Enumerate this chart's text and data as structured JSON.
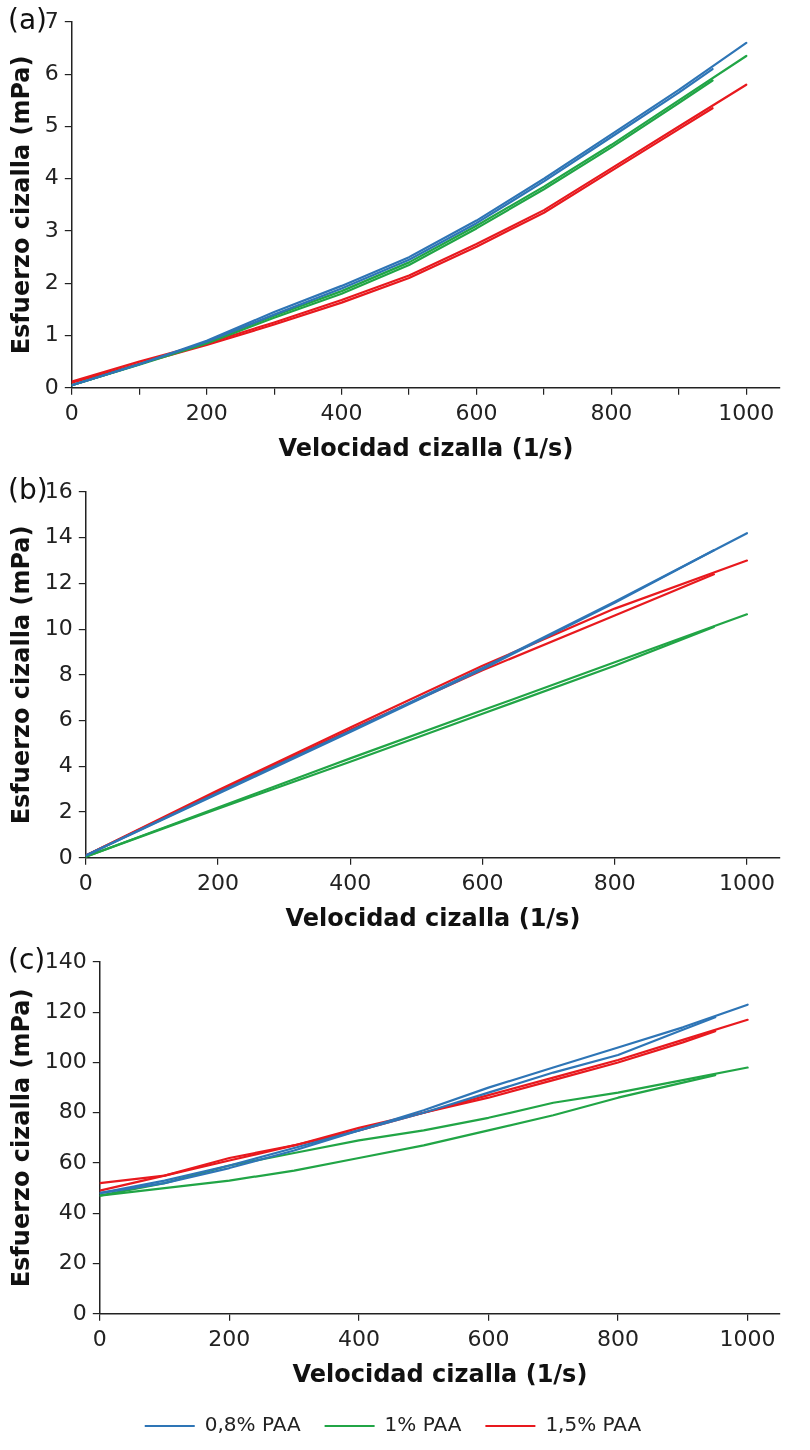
{
  "chart_data": [
    {
      "type": "line",
      "title": "(a)",
      "xlabel": "Velocidad cizalla (1/s)",
      "ylabel": "Esfuerzo cizalla (mPa)",
      "xlim": [
        0,
        1050
      ],
      "xticks": [
        0,
        {
          "value": 100,
          "label": null
        },
        200,
        {
          "value": 300,
          "label": null
        },
        400,
        {
          "value": 500,
          "label": null
        },
        600,
        {
          "value": 700,
          "label": null
        },
        800,
        {
          "value": 900,
          "label": null
        },
        1000
      ],
      "ylim": [
        0,
        7
      ],
      "yticks": [
        0,
        1,
        2,
        3,
        4,
        5,
        6,
        7
      ],
      "grid": false,
      "legend": false,
      "marker": "none",
      "line_style": "solid",
      "series": [
        {
          "color": "#2e75b6",
          "x": [
            0,
            100,
            200,
            300,
            400,
            500,
            600,
            700,
            800,
            900,
            1000
          ],
          "values": [
            0.05,
            0.45,
            0.9,
            1.45,
            1.95,
            2.5,
            3.2,
            4.0,
            4.85,
            5.7,
            6.6
          ]
        },
        {
          "color": "#2e75b6",
          "x": [
            950,
            900,
            800,
            700,
            600,
            500,
            400,
            300,
            200,
            100,
            0
          ],
          "values": [
            6.1,
            5.65,
            4.8,
            3.95,
            3.15,
            2.45,
            1.9,
            1.4,
            0.88,
            0.45,
            0.05
          ]
        },
        {
          "color": "#21a546",
          "x": [
            0,
            100,
            200,
            300,
            400,
            500,
            600,
            700,
            800,
            900,
            1000
          ],
          "values": [
            0.05,
            0.45,
            0.88,
            1.38,
            1.85,
            2.4,
            3.1,
            3.85,
            4.65,
            5.5,
            6.35
          ]
        },
        {
          "color": "#21a546",
          "x": [
            950,
            900,
            800,
            700,
            600,
            500,
            400,
            300,
            200,
            100,
            0
          ],
          "values": [
            5.88,
            5.45,
            4.6,
            3.8,
            3.05,
            2.35,
            1.8,
            1.34,
            0.85,
            0.44,
            0.05
          ]
        },
        {
          "color": "#e8191e",
          "x": [
            0,
            100,
            200,
            300,
            400,
            500,
            600,
            700,
            800,
            900,
            1000
          ],
          "values": [
            0.12,
            0.5,
            0.85,
            1.25,
            1.68,
            2.15,
            2.75,
            3.4,
            4.2,
            5.0,
            5.8
          ]
        },
        {
          "color": "#e8191e",
          "x": [
            950,
            900,
            800,
            700,
            600,
            500,
            400,
            300,
            200,
            100,
            0
          ],
          "values": [
            5.35,
            4.95,
            4.15,
            3.35,
            2.7,
            2.1,
            1.63,
            1.21,
            0.82,
            0.46,
            0.1
          ]
        }
      ]
    },
    {
      "type": "line",
      "title": "(b)",
      "xlabel": "Velocidad cizalla (1/s)",
      "ylabel": "Esfuerzo cizalla (mPa)",
      "xlim": [
        0,
        1050
      ],
      "xticks": [
        0,
        200,
        400,
        600,
        800,
        1000
      ],
      "ylim": [
        0,
        16
      ],
      "yticks": [
        0,
        2,
        4,
        6,
        8,
        10,
        12,
        14,
        16
      ],
      "grid": false,
      "legend": false,
      "marker": "none",
      "line_style": "solid",
      "series": [
        {
          "color": "#2e75b6",
          "x": [
            0,
            200,
            400,
            600,
            800,
            1000
          ],
          "values": [
            0.1,
            2.85,
            5.55,
            8.3,
            11.2,
            14.2
          ]
        },
        {
          "color": "#2e75b6",
          "x": [
            950,
            800,
            600,
            400,
            200,
            0
          ],
          "values": [
            13.45,
            11.15,
            8.25,
            5.5,
            2.8,
            0.1
          ]
        },
        {
          "color": "#21a546",
          "x": [
            0,
            200,
            400,
            600,
            800,
            1000
          ],
          "values": [
            0.05,
            2.2,
            4.35,
            6.45,
            8.55,
            10.65
          ]
        },
        {
          "color": "#21a546",
          "x": [
            950,
            800,
            600,
            400,
            200,
            0
          ],
          "values": [
            10.1,
            8.4,
            6.3,
            4.2,
            2.15,
            0.05
          ]
        },
        {
          "color": "#e8191e",
          "x": [
            0,
            200,
            400,
            600,
            800,
            1000
          ],
          "values": [
            0.1,
            2.95,
            5.7,
            8.4,
            10.9,
            13.0
          ]
        },
        {
          "color": "#e8191e",
          "x": [
            950,
            800,
            600,
            400,
            200,
            0
          ],
          "values": [
            12.4,
            10.6,
            8.2,
            5.6,
            2.9,
            0.1
          ]
        }
      ]
    },
    {
      "type": "line",
      "title": "(c)",
      "xlabel": "Velocidad cizalla (1/s)",
      "ylabel": "Esfuerzo cizalla (mPa)",
      "xlim": [
        0,
        1050
      ],
      "xticks": [
        0,
        200,
        400,
        600,
        800,
        1000
      ],
      "ylim": [
        0,
        140
      ],
      "yticks": [
        0,
        20,
        40,
        60,
        80,
        100,
        120,
        140
      ],
      "grid": false,
      "legend": "bottom",
      "marker": "none",
      "line_style": "solid",
      "series": [
        {
          "name": "0,8% PAA",
          "color": "#2e75b6",
          "x": [
            0,
            100,
            200,
            300,
            400,
            500,
            600,
            700,
            800,
            900,
            1000
          ],
          "values": [
            48,
            52,
            58,
            65,
            73,
            81,
            90,
            98,
            106,
            114,
            123
          ]
        },
        {
          "color": "#2e75b6",
          "x": [
            950,
            900,
            800,
            700,
            600,
            500,
            400,
            300,
            200,
            100,
            0
          ],
          "values": [
            118,
            113,
            103,
            96,
            88,
            80,
            73,
            66,
            59,
            53,
            48
          ]
        },
        {
          "name": "1% PAA",
          "color": "#21a546",
          "x": [
            0,
            100,
            200,
            300,
            400,
            500,
            600,
            700,
            800,
            900,
            1000
          ],
          "values": [
            47,
            52,
            59,
            64,
            69,
            73,
            78,
            84,
            88,
            93,
            98
          ]
        },
        {
          "color": "#21a546",
          "x": [
            950,
            900,
            800,
            700,
            600,
            500,
            400,
            300,
            200,
            100,
            0
          ],
          "values": [
            95,
            92,
            86,
            79,
            73,
            67,
            62,
            57,
            53,
            50,
            47
          ]
        },
        {
          "name": "1,5% PAA",
          "color": "#e8191e",
          "x": [
            0,
            100,
            200,
            300,
            400,
            500,
            600,
            700,
            800,
            900,
            1000
          ],
          "values": [
            52,
            55,
            62,
            67,
            74,
            80,
            87,
            94,
            101,
            109,
            117
          ]
        },
        {
          "color": "#e8191e",
          "x": [
            950,
            900,
            800,
            700,
            600,
            500,
            400,
            300,
            200,
            100,
            0
          ],
          "values": [
            112.5,
            108,
            100,
            93,
            86,
            80,
            73,
            67,
            61,
            55,
            49
          ]
        }
      ]
    }
  ]
}
